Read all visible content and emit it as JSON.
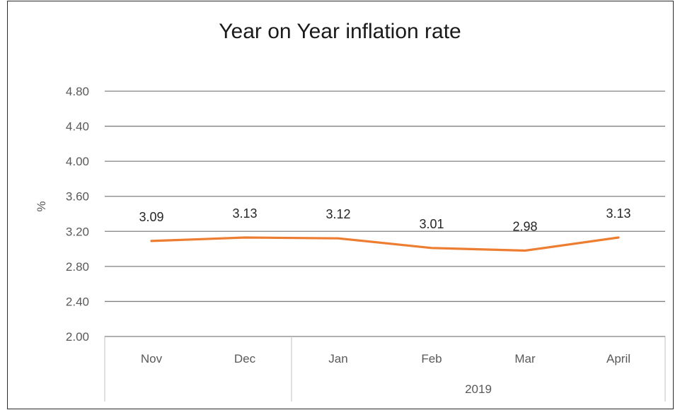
{
  "chart_data": {
    "type": "line",
    "title": "Year on Year inflation rate",
    "ylabel": "%",
    "xlabel": "",
    "categories": [
      "Nov",
      "Dec",
      "Jan",
      "Feb",
      "Mar",
      "April"
    ],
    "group_labels": [
      {
        "label": "",
        "span": [
          0,
          1
        ]
      },
      {
        "label": "2019",
        "span": [
          2,
          5
        ]
      }
    ],
    "series": [
      {
        "values": [
          3.09,
          3.13,
          3.12,
          3.01,
          2.98,
          3.13
        ],
        "data_labels": [
          "3.09",
          "3.13",
          "3.12",
          "3.01",
          "2.98",
          "3.13"
        ],
        "color": "#ED7D31"
      }
    ],
    "ylim": [
      2.0,
      4.8
    ],
    "yticks": [
      2.0,
      2.4,
      2.8,
      3.2,
      3.6,
      4.0,
      4.4,
      4.8
    ],
    "ytick_labels": [
      "2.00",
      "2.40",
      "2.80",
      "3.20",
      "3.60",
      "4.00",
      "4.40",
      "4.80"
    ],
    "grid": true,
    "legend": "none",
    "gridline_color": "#808080"
  }
}
